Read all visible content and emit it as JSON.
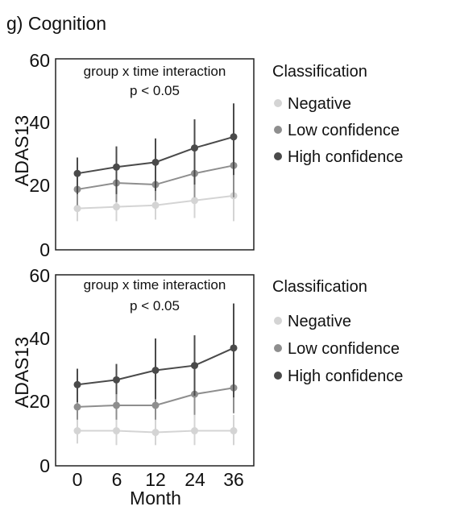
{
  "figure": {
    "title": "g) Cognition"
  },
  "colors": {
    "Negative": "#d4d4d4",
    "Low confidence": "#8e8e8e",
    "High confidence": "#4a4a4a",
    "frame": "#222222"
  },
  "chart_data": [
    {
      "type": "line",
      "ylabel": "ADAS13",
      "xlabel": "",
      "x": [
        "0",
        "6",
        "12",
        "24",
        "36"
      ],
      "ylim": [
        0,
        60
      ],
      "yticks": [
        "0",
        "20",
        "40",
        "60"
      ],
      "grid": false,
      "annotation": [
        "group x time interaction",
        "p < 0.05"
      ],
      "legend": {
        "title": "Classification",
        "placement": "right",
        "entries": [
          "Negative",
          "Low confidence",
          "High confidence"
        ]
      },
      "series": [
        {
          "name": "Negative",
          "values": [
            13,
            13.5,
            14,
            15.5,
            17
          ],
          "err_low": [
            9,
            9,
            9.5,
            10,
            9
          ],
          "err_high": [
            17,
            18,
            18.5,
            22,
            25
          ]
        },
        {
          "name": "Low confidence",
          "values": [
            19,
            21,
            20.5,
            24,
            26.5
          ],
          "err_low": [
            14,
            15,
            15.5,
            16.5,
            16.5
          ],
          "err_high": [
            24,
            27,
            27,
            32,
            36.5
          ]
        },
        {
          "name": "High confidence",
          "values": [
            24,
            26,
            27.5,
            32,
            35.5
          ],
          "err_low": [
            17.5,
            17.5,
            18.5,
            20.5,
            23.5
          ],
          "err_high": [
            29,
            32.5,
            35,
            41,
            46
          ]
        }
      ]
    },
    {
      "type": "line",
      "ylabel": "ADAS13",
      "xlabel": "Month",
      "x": [
        "0",
        "6",
        "12",
        "24",
        "36"
      ],
      "ylim": [
        0,
        60
      ],
      "yticks": [
        "0",
        "20",
        "40",
        "60"
      ],
      "grid": false,
      "annotation": [
        "group x time interaction",
        "p < 0.05"
      ],
      "legend": {
        "title": "Classification",
        "placement": "right",
        "entries": [
          "Negative",
          "Low confidence",
          "High confidence"
        ]
      },
      "series": [
        {
          "name": "Negative",
          "values": [
            11,
            11,
            10.5,
            11,
            11
          ],
          "err_low": [
            7,
            6.5,
            6.5,
            6.5,
            6.5
          ],
          "err_high": [
            15,
            16,
            15,
            16,
            16
          ]
        },
        {
          "name": "Low confidence",
          "values": [
            18.5,
            19,
            19,
            22.5,
            24.5
          ],
          "err_low": [
            14.5,
            14.5,
            14.5,
            16,
            16.5
          ],
          "err_high": [
            22.5,
            24,
            24,
            29,
            33
          ]
        },
        {
          "name": "High confidence",
          "values": [
            25.5,
            27,
            30,
            31.5,
            37
          ],
          "err_low": [
            20,
            22.5,
            21,
            22,
            21.5
          ],
          "err_high": [
            30.5,
            32,
            40,
            41,
            51
          ]
        }
      ]
    }
  ]
}
